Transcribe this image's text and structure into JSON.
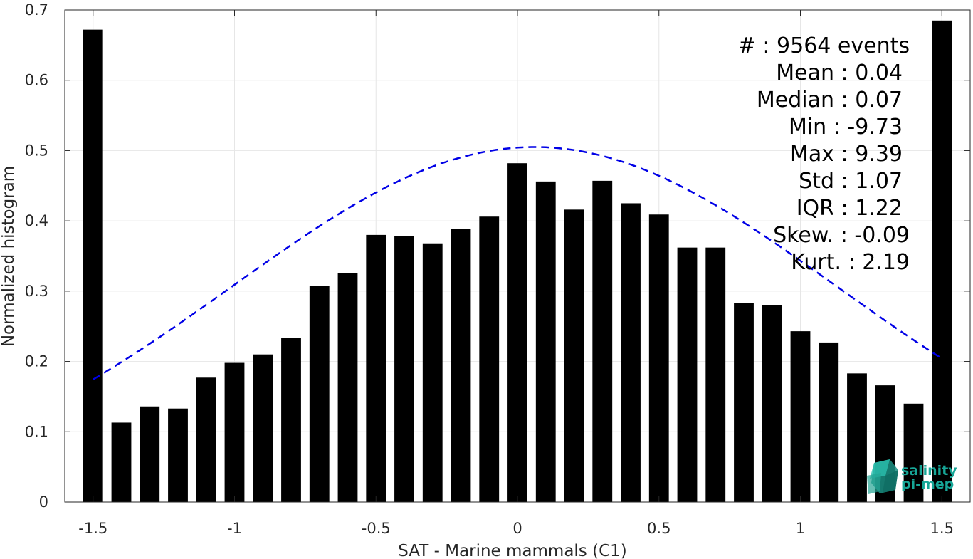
{
  "chart_data": {
    "type": "bar",
    "xlabel": "SAT - Marine mammals (C1)",
    "ylabel": "Normalized histogram",
    "xlim": [
      -1.6,
      1.6
    ],
    "ylim": [
      0,
      0.7
    ],
    "xticks": [
      -1.5,
      -1,
      -0.5,
      0,
      0.5,
      1,
      1.5
    ],
    "xtick_labels": [
      "-1.5",
      "-1",
      "-0.5",
      "0",
      "0.5",
      "1",
      "1.5"
    ],
    "yticks": [
      0,
      0.1,
      0.2,
      0.3,
      0.4,
      0.5,
      0.6,
      0.7
    ],
    "ytick_labels": [
      "0",
      "0.1",
      "0.2",
      "0.3",
      "0.4",
      "0.5",
      "0.6",
      "0.7"
    ],
    "grid": true,
    "bar_width": 0.07,
    "x": [
      -1.5,
      -1.4,
      -1.3,
      -1.2,
      -1.1,
      -1.0,
      -0.9,
      -0.8,
      -0.7,
      -0.6,
      -0.5,
      -0.4,
      -0.3,
      -0.2,
      -0.1,
      0.0,
      0.1,
      0.2,
      0.3,
      0.4,
      0.5,
      0.6,
      0.7,
      0.8,
      0.9,
      1.0,
      1.1,
      1.2,
      1.3,
      1.4,
      1.5
    ],
    "values": [
      0.672,
      0.113,
      0.136,
      0.133,
      0.177,
      0.198,
      0.21,
      0.233,
      0.307,
      0.326,
      0.38,
      0.378,
      0.368,
      0.388,
      0.406,
      0.482,
      0.456,
      0.416,
      0.457,
      0.425,
      0.409,
      0.362,
      0.362,
      0.283,
      0.28,
      0.243,
      0.227,
      0.183,
      0.166,
      0.14,
      0.685
    ],
    "fit_curve": {
      "type": "normal",
      "mean": 0.06,
      "std": 1.07,
      "peak": 0.505,
      "x_range": [
        -1.5,
        1.5
      ],
      "color": "#0000e6",
      "style": "dashed"
    },
    "bar_color": "#000000",
    "stats": [
      "#  : 9564 events",
      "Mean : 0.04",
      "Median : 0.07",
      "Min : -9.73",
      "Max : 9.39",
      "Std : 1.07",
      "IQR : 1.22",
      "Skew. : -0.09",
      "Kurt. : 2.19"
    ],
    "logo": {
      "name": "salinity-pimep-logo",
      "line1": "salinity",
      "line2": "pi-mep",
      "color": "#17a697"
    }
  }
}
